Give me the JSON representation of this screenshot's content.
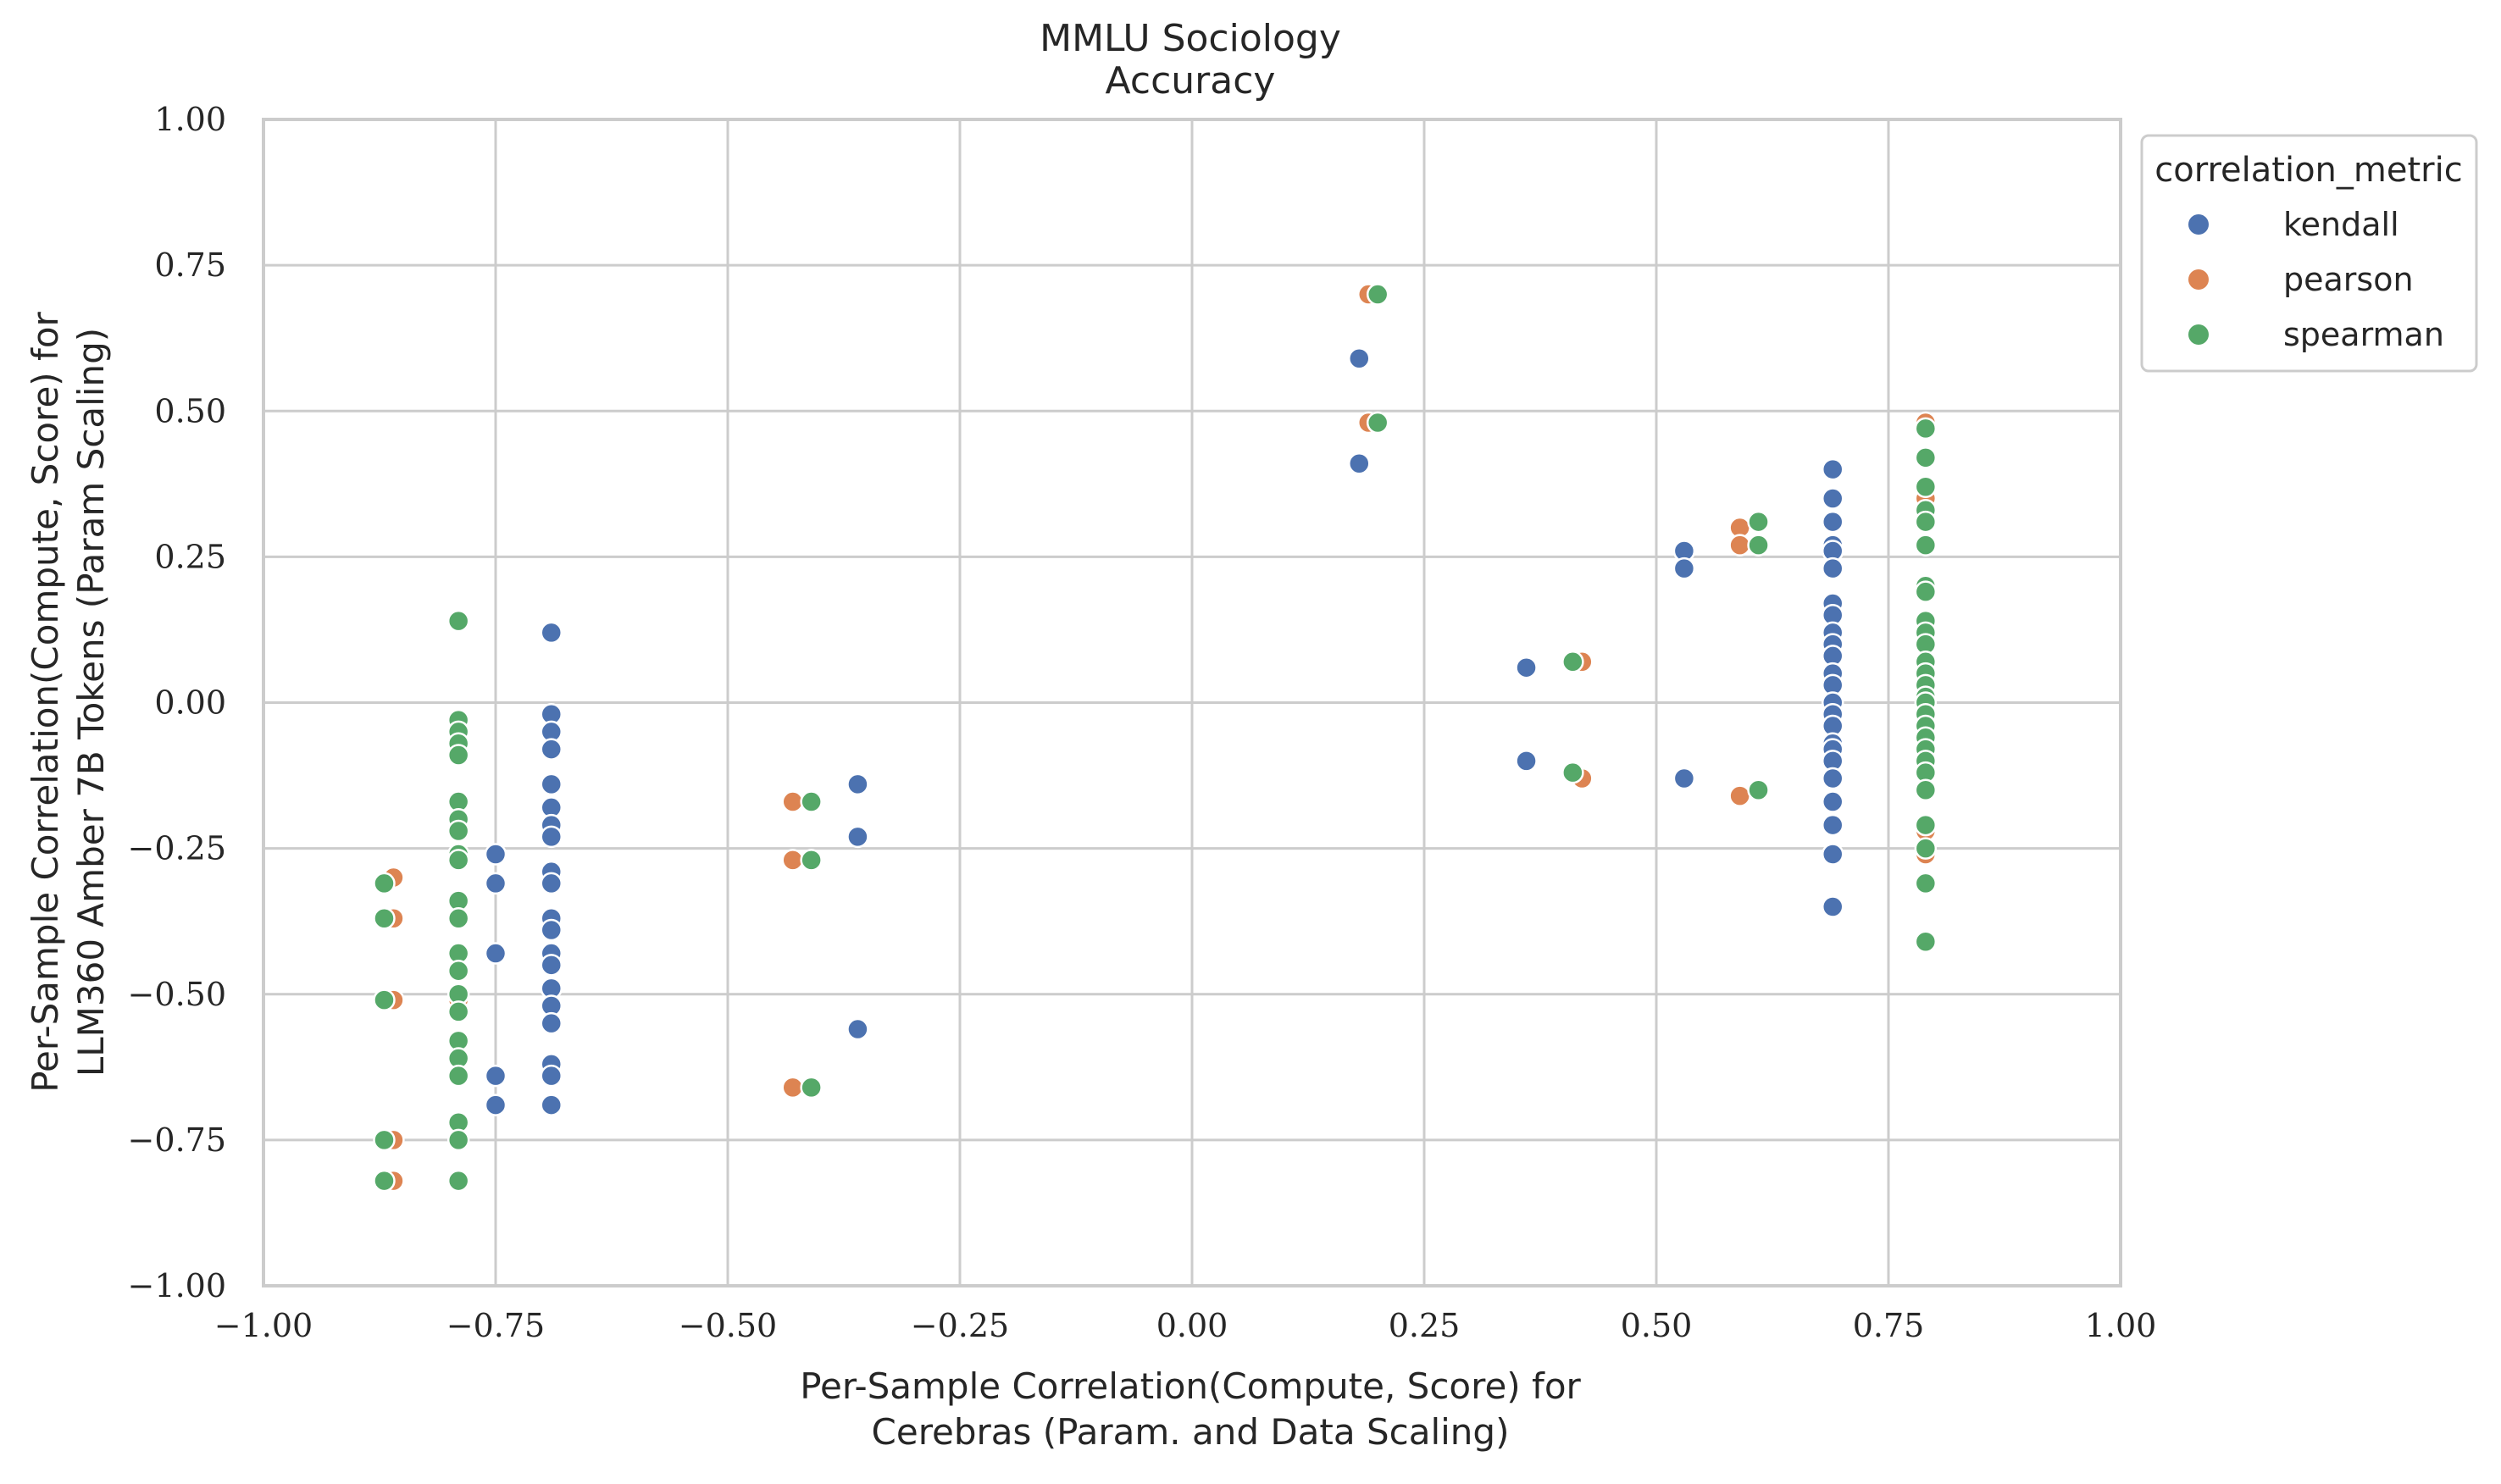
{
  "chart_data": {
    "type": "scatter",
    "title": [
      "MMLU Sociology",
      "Accuracy"
    ],
    "xlabel": [
      "Per-Sample Correlation(Compute, Score) for",
      "Cerebras (Param. and Data Scaling)"
    ],
    "ylabel": [
      "Per-Sample Correlation(Compute, Score) for",
      "LLM360 Amber 7B Tokens (Param Scaling)"
    ],
    "xlim": [
      -1.0,
      1.0
    ],
    "ylim": [
      -1.0,
      1.0
    ],
    "xticks": [
      "−1.00",
      "−0.75",
      "−0.50",
      "−0.25",
      "0.00",
      "0.25",
      "0.50",
      "0.75",
      "1.00"
    ],
    "yticks": [
      "−1.00",
      "−0.75",
      "−0.50",
      "−0.25",
      "0.00",
      "0.25",
      "0.50",
      "0.75",
      "1.00"
    ],
    "grid": true,
    "legend": {
      "title": "correlation_metric",
      "placement": "outside top-right",
      "entries": [
        "kendall",
        "pearson",
        "spearman"
      ]
    },
    "series": [
      {
        "name": "kendall",
        "color": "#4c72b0",
        "points": [
          [
            -0.75,
            -0.26
          ],
          [
            -0.75,
            -0.31
          ],
          [
            -0.75,
            -0.43
          ],
          [
            -0.75,
            -0.64
          ],
          [
            -0.75,
            -0.69
          ],
          [
            -0.69,
            0.12
          ],
          [
            -0.69,
            -0.02
          ],
          [
            -0.69,
            -0.05
          ],
          [
            -0.69,
            -0.08
          ],
          [
            -0.69,
            -0.14
          ],
          [
            -0.69,
            -0.18
          ],
          [
            -0.69,
            -0.21
          ],
          [
            -0.69,
            -0.23
          ],
          [
            -0.69,
            -0.29
          ],
          [
            -0.69,
            -0.31
          ],
          [
            -0.69,
            -0.37
          ],
          [
            -0.69,
            -0.39
          ],
          [
            -0.69,
            -0.43
          ],
          [
            -0.69,
            -0.45
          ],
          [
            -0.69,
            -0.49
          ],
          [
            -0.69,
            -0.52
          ],
          [
            -0.69,
            -0.55
          ],
          [
            -0.69,
            -0.62
          ],
          [
            -0.69,
            -0.64
          ],
          [
            -0.69,
            -0.69
          ],
          [
            -0.36,
            -0.14
          ],
          [
            -0.36,
            -0.23
          ],
          [
            -0.36,
            -0.56
          ],
          [
            0.18,
            0.59
          ],
          [
            0.18,
            0.41
          ],
          [
            0.36,
            0.06
          ],
          [
            0.36,
            -0.1
          ],
          [
            0.53,
            0.26
          ],
          [
            0.53,
            0.23
          ],
          [
            0.53,
            -0.13
          ],
          [
            0.69,
            0.4
          ],
          [
            0.69,
            0.35
          ],
          [
            0.69,
            0.31
          ],
          [
            0.69,
            0.27
          ],
          [
            0.69,
            0.26
          ],
          [
            0.69,
            0.23
          ],
          [
            0.69,
            0.17
          ],
          [
            0.69,
            0.15
          ],
          [
            0.69,
            0.12
          ],
          [
            0.69,
            0.1
          ],
          [
            0.69,
            0.08
          ],
          [
            0.69,
            0.05
          ],
          [
            0.69,
            0.03
          ],
          [
            0.69,
            0.0
          ],
          [
            0.69,
            -0.02
          ],
          [
            0.69,
            -0.04
          ],
          [
            0.69,
            -0.07
          ],
          [
            0.69,
            -0.08
          ],
          [
            0.69,
            -0.1
          ],
          [
            0.69,
            -0.13
          ],
          [
            0.69,
            -0.17
          ],
          [
            0.69,
            -0.21
          ],
          [
            0.69,
            -0.26
          ],
          [
            0.69,
            -0.35
          ]
        ]
      },
      {
        "name": "pearson",
        "color": "#dd8452",
        "points": [
          [
            -0.86,
            -0.3
          ],
          [
            -0.86,
            -0.37
          ],
          [
            -0.86,
            -0.51
          ],
          [
            -0.86,
            -0.75
          ],
          [
            -0.86,
            -0.82
          ],
          [
            -0.79,
            -0.17
          ],
          [
            -0.79,
            -0.34
          ],
          [
            -0.79,
            -0.51
          ],
          [
            -0.79,
            -0.72
          ],
          [
            -0.43,
            -0.17
          ],
          [
            -0.43,
            -0.27
          ],
          [
            -0.43,
            -0.66
          ],
          [
            0.19,
            0.7
          ],
          [
            0.19,
            0.48
          ],
          [
            0.42,
            0.07
          ],
          [
            0.42,
            -0.13
          ],
          [
            0.59,
            0.3
          ],
          [
            0.59,
            0.27
          ],
          [
            0.59,
            -0.16
          ],
          [
            0.79,
            0.48
          ],
          [
            0.79,
            0.35
          ],
          [
            0.79,
            0.2
          ],
          [
            0.79,
            -0.22
          ],
          [
            0.79,
            -0.26
          ],
          [
            0.79,
            -0.41
          ]
        ]
      },
      {
        "name": "spearman",
        "color": "#55a868",
        "points": [
          [
            -0.87,
            -0.31
          ],
          [
            -0.87,
            -0.37
          ],
          [
            -0.87,
            -0.51
          ],
          [
            -0.87,
            -0.75
          ],
          [
            -0.87,
            -0.82
          ],
          [
            -0.79,
            0.14
          ],
          [
            -0.79,
            -0.03
          ],
          [
            -0.79,
            -0.05
          ],
          [
            -0.79,
            -0.07
          ],
          [
            -0.79,
            -0.09
          ],
          [
            -0.79,
            -0.17
          ],
          [
            -0.79,
            -0.2
          ],
          [
            -0.79,
            -0.22
          ],
          [
            -0.79,
            -0.26
          ],
          [
            -0.79,
            -0.27
          ],
          [
            -0.79,
            -0.34
          ],
          [
            -0.79,
            -0.37
          ],
          [
            -0.79,
            -0.43
          ],
          [
            -0.79,
            -0.46
          ],
          [
            -0.79,
            -0.5
          ],
          [
            -0.79,
            -0.53
          ],
          [
            -0.79,
            -0.58
          ],
          [
            -0.79,
            -0.61
          ],
          [
            -0.79,
            -0.64
          ],
          [
            -0.79,
            -0.72
          ],
          [
            -0.79,
            -0.75
          ],
          [
            -0.79,
            -0.82
          ],
          [
            -0.41,
            -0.17
          ],
          [
            -0.41,
            -0.27
          ],
          [
            -0.41,
            -0.66
          ],
          [
            0.2,
            0.7
          ],
          [
            0.2,
            0.48
          ],
          [
            0.41,
            0.07
          ],
          [
            0.41,
            -0.12
          ],
          [
            0.61,
            0.31
          ],
          [
            0.61,
            0.27
          ],
          [
            0.61,
            -0.15
          ],
          [
            0.79,
            0.47
          ],
          [
            0.79,
            0.42
          ],
          [
            0.79,
            0.37
          ],
          [
            0.79,
            0.33
          ],
          [
            0.79,
            0.31
          ],
          [
            0.79,
            0.27
          ],
          [
            0.79,
            0.2
          ],
          [
            0.79,
            0.19
          ],
          [
            0.79,
            0.14
          ],
          [
            0.79,
            0.12
          ],
          [
            0.79,
            0.1
          ],
          [
            0.79,
            0.07
          ],
          [
            0.79,
            0.05
          ],
          [
            0.79,
            0.03
          ],
          [
            0.79,
            0.01
          ],
          [
            0.79,
            0.0
          ],
          [
            0.79,
            -0.02
          ],
          [
            0.79,
            -0.04
          ],
          [
            0.79,
            -0.06
          ],
          [
            0.79,
            -0.08
          ],
          [
            0.79,
            -0.1
          ],
          [
            0.79,
            -0.12
          ],
          [
            0.79,
            -0.15
          ],
          [
            0.79,
            -0.21
          ],
          [
            0.79,
            -0.25
          ],
          [
            0.79,
            -0.31
          ],
          [
            0.79,
            -0.41
          ]
        ]
      }
    ]
  }
}
